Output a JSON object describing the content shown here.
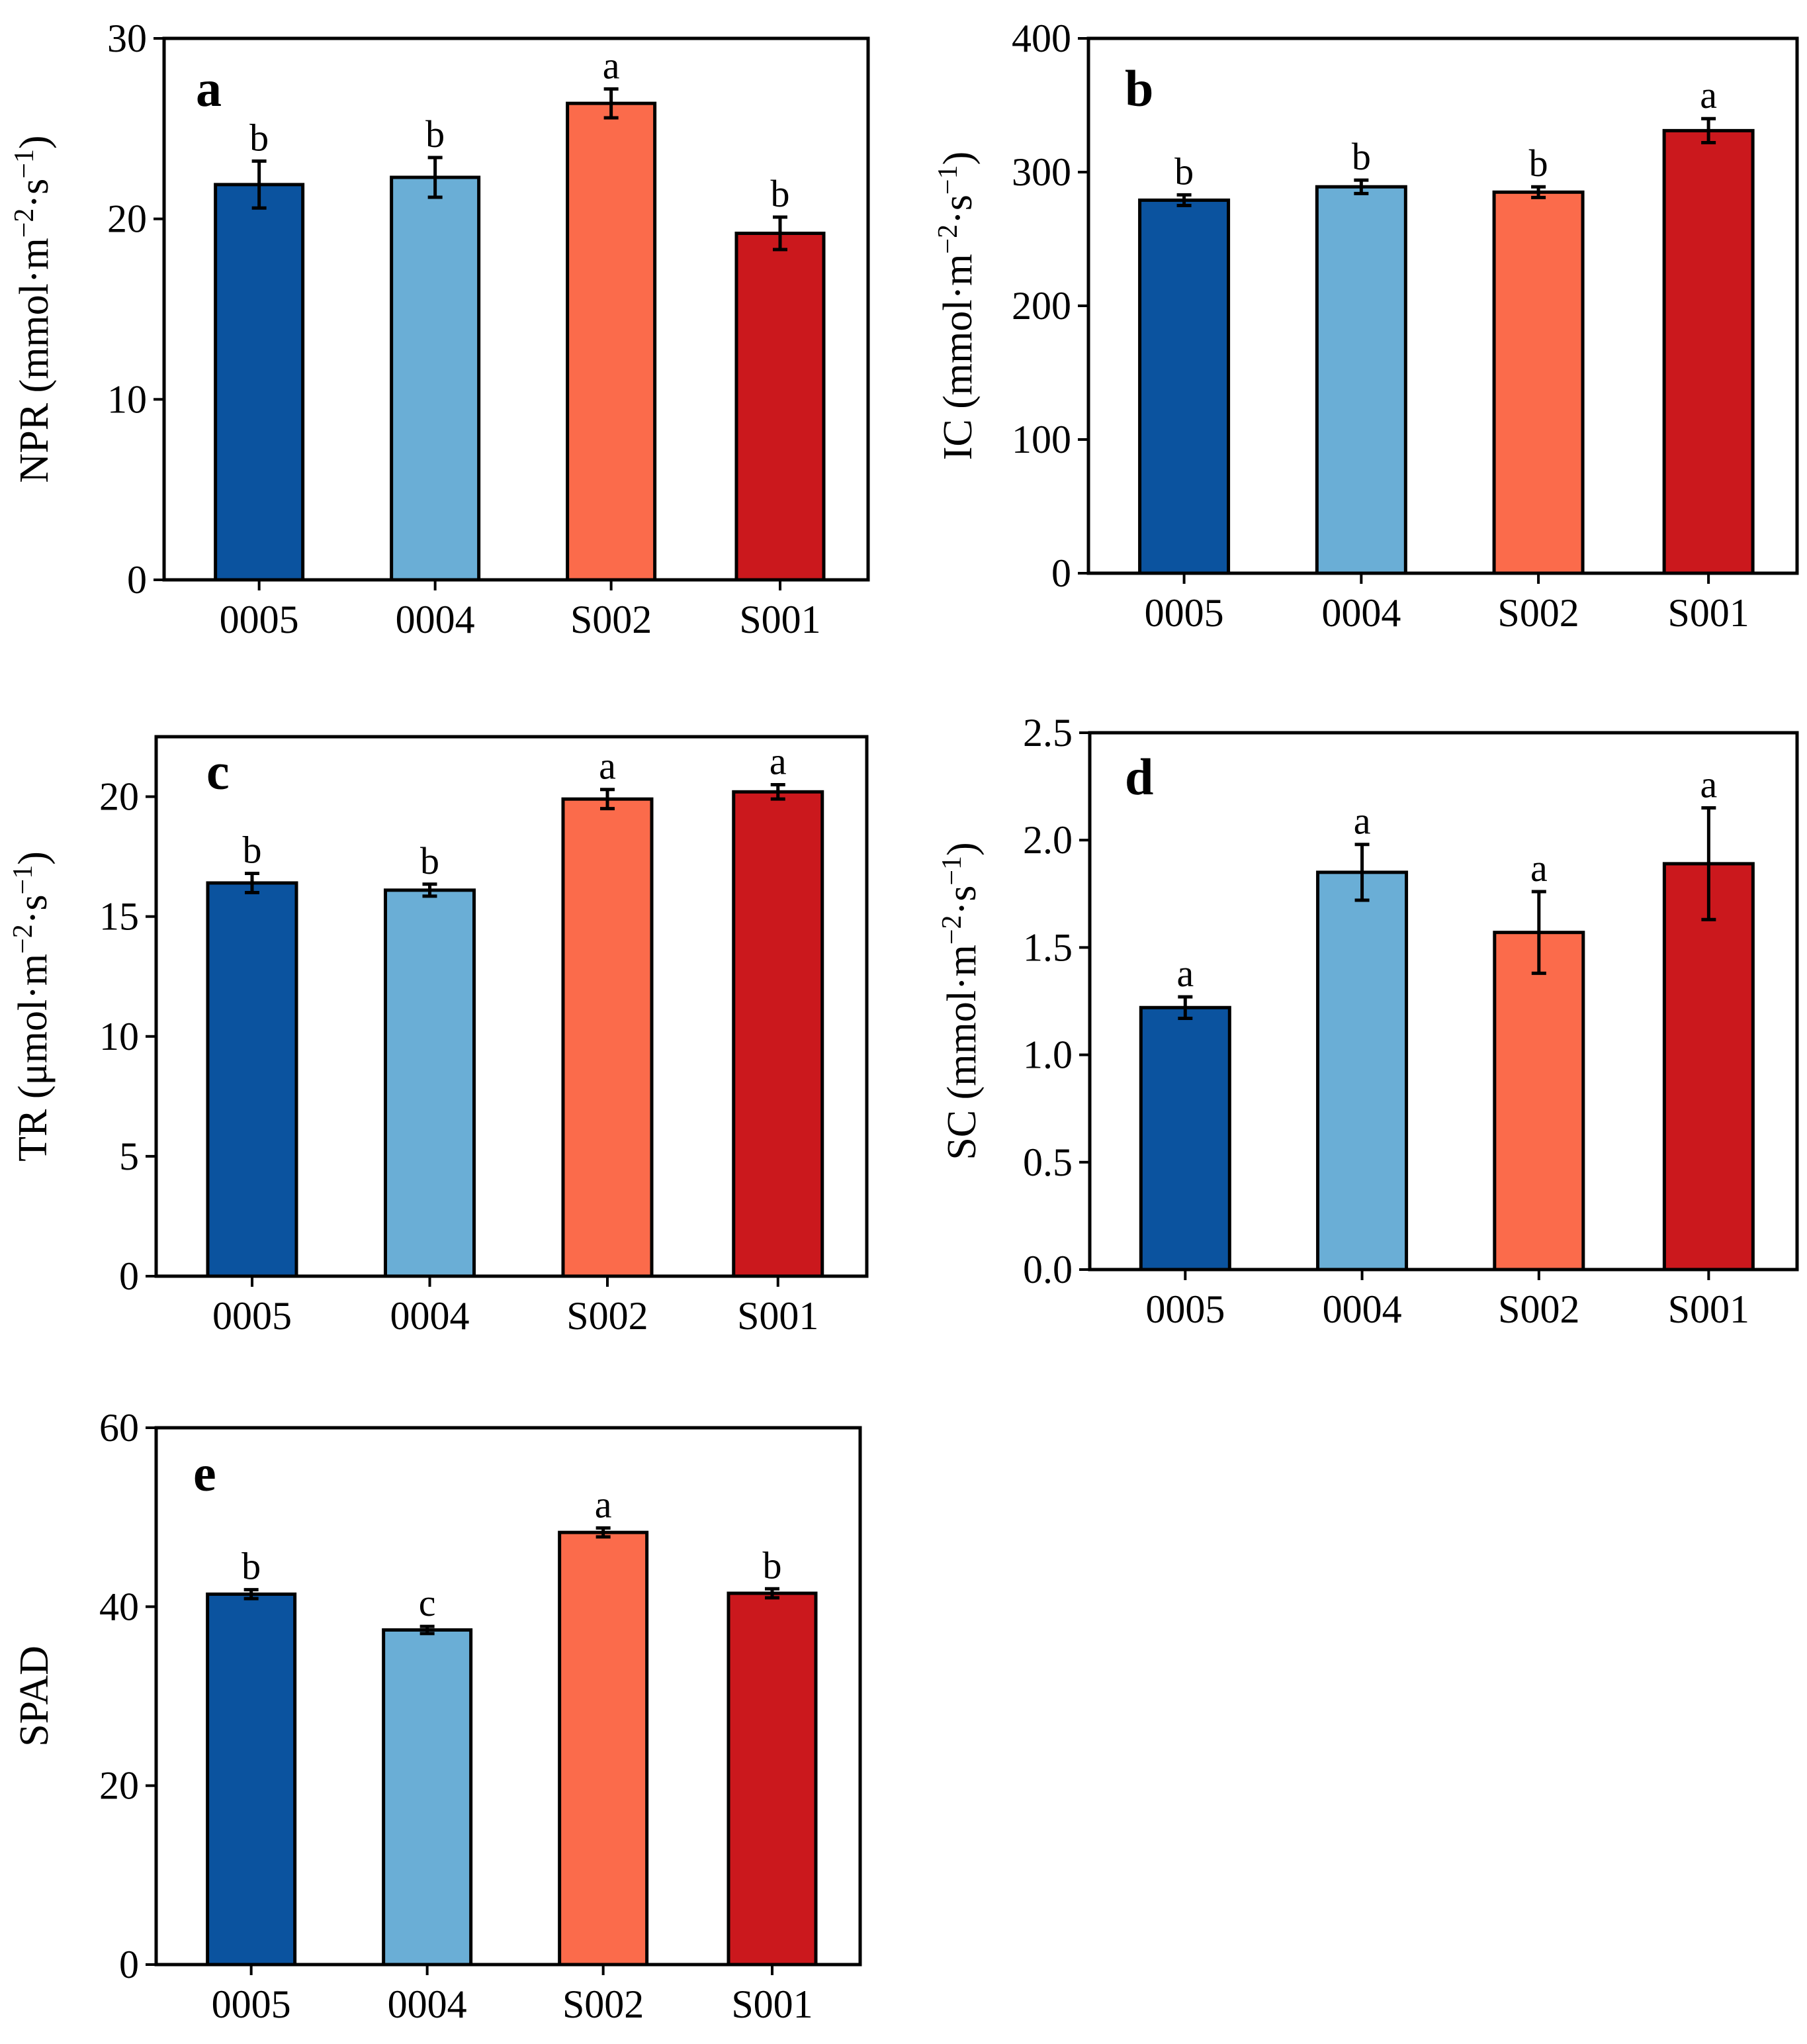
{
  "colors": [
    "#0b539f",
    "#6aaed6",
    "#fb6b4b",
    "#cb181d"
  ],
  "chart_data": [
    {
      "type": "bar",
      "panel": "a",
      "categories": [
        "0005",
        "0004",
        "S002",
        "S001"
      ],
      "values": [
        21.9,
        22.3,
        26.4,
        19.2
      ],
      "errors": [
        1.3,
        1.1,
        0.8,
        0.9
      ],
      "significance": [
        "b",
        "b",
        "a",
        "b"
      ],
      "ylabel_main": "NPR (mmol·m",
      "ylabel_sup1": "−2",
      "ylabel_mid": "·s",
      "ylabel_sup2": "−1",
      "ylabel_end": ")",
      "ylim": [
        0,
        30
      ],
      "yticks": [
        "0",
        "10",
        "20",
        "30"
      ],
      "ytick_values": [
        0,
        10,
        20,
        30
      ]
    },
    {
      "type": "bar",
      "panel": "b",
      "categories": [
        "0005",
        "0004",
        "S002",
        "S001"
      ],
      "values": [
        279,
        289,
        285,
        331
      ],
      "errors": [
        4,
        5,
        4,
        9
      ],
      "significance": [
        "b",
        "b",
        "b",
        "a"
      ],
      "ylabel_main": "IC (mmol·m",
      "ylabel_sup1": "−2",
      "ylabel_mid": "·s",
      "ylabel_sup2": "−1",
      "ylabel_end": ")",
      "ylim": [
        0,
        400
      ],
      "yticks": [
        "0",
        "100",
        "200",
        "300",
        "400"
      ],
      "ytick_values": [
        0,
        100,
        200,
        300,
        400
      ]
    },
    {
      "type": "bar",
      "panel": "c",
      "categories": [
        "0005",
        "0004",
        "S002",
        "S001"
      ],
      "values": [
        16.4,
        16.1,
        19.9,
        20.2
      ],
      "errors": [
        0.4,
        0.25,
        0.4,
        0.3
      ],
      "significance": [
        "b",
        "b",
        "a",
        "a"
      ],
      "ylabel_main": "TR (μmol·m",
      "ylabel_sup1": "−2",
      "ylabel_mid": "·s",
      "ylabel_sup2": "−1",
      "ylabel_end": ")",
      "ylim": [
        0,
        22.5
      ],
      "yticks": [
        "0",
        "5",
        "10",
        "15",
        "20"
      ],
      "ytick_values": [
        0,
        5,
        10,
        15,
        20
      ]
    },
    {
      "type": "bar",
      "panel": "d",
      "categories": [
        "0005",
        "0004",
        "S002",
        "S001"
      ],
      "values": [
        1.22,
        1.85,
        1.57,
        1.89
      ],
      "errors": [
        0.05,
        0.13,
        0.19,
        0.26
      ],
      "significance": [
        "a",
        "a",
        "a",
        "a"
      ],
      "ylabel_main": "SC (mmol·m",
      "ylabel_sup1": "−2",
      "ylabel_mid": "·s",
      "ylabel_sup2": "−1",
      "ylabel_end": ")",
      "ylim": [
        0,
        2.5
      ],
      "yticks": [
        "0.0",
        "0.5",
        "1.0",
        "1.5",
        "2.0",
        "2.5"
      ],
      "ytick_values": [
        0,
        0.5,
        1.0,
        1.5,
        2.0,
        2.5
      ]
    },
    {
      "type": "bar",
      "panel": "e",
      "categories": [
        "0005",
        "0004",
        "S002",
        "S001"
      ],
      "values": [
        41.4,
        37.4,
        48.3,
        41.5
      ],
      "errors": [
        0.5,
        0.4,
        0.5,
        0.5
      ],
      "significance": [
        "b",
        "c",
        "a",
        "b"
      ],
      "ylabel_main": "SPAD",
      "ylabel_sup1": "",
      "ylabel_mid": "",
      "ylabel_sup2": "",
      "ylabel_end": "",
      "ylim": [
        0,
        60
      ],
      "yticks": [
        "0",
        "20",
        "40",
        "60"
      ],
      "ytick_values": [
        0,
        20,
        40,
        60
      ]
    }
  ]
}
